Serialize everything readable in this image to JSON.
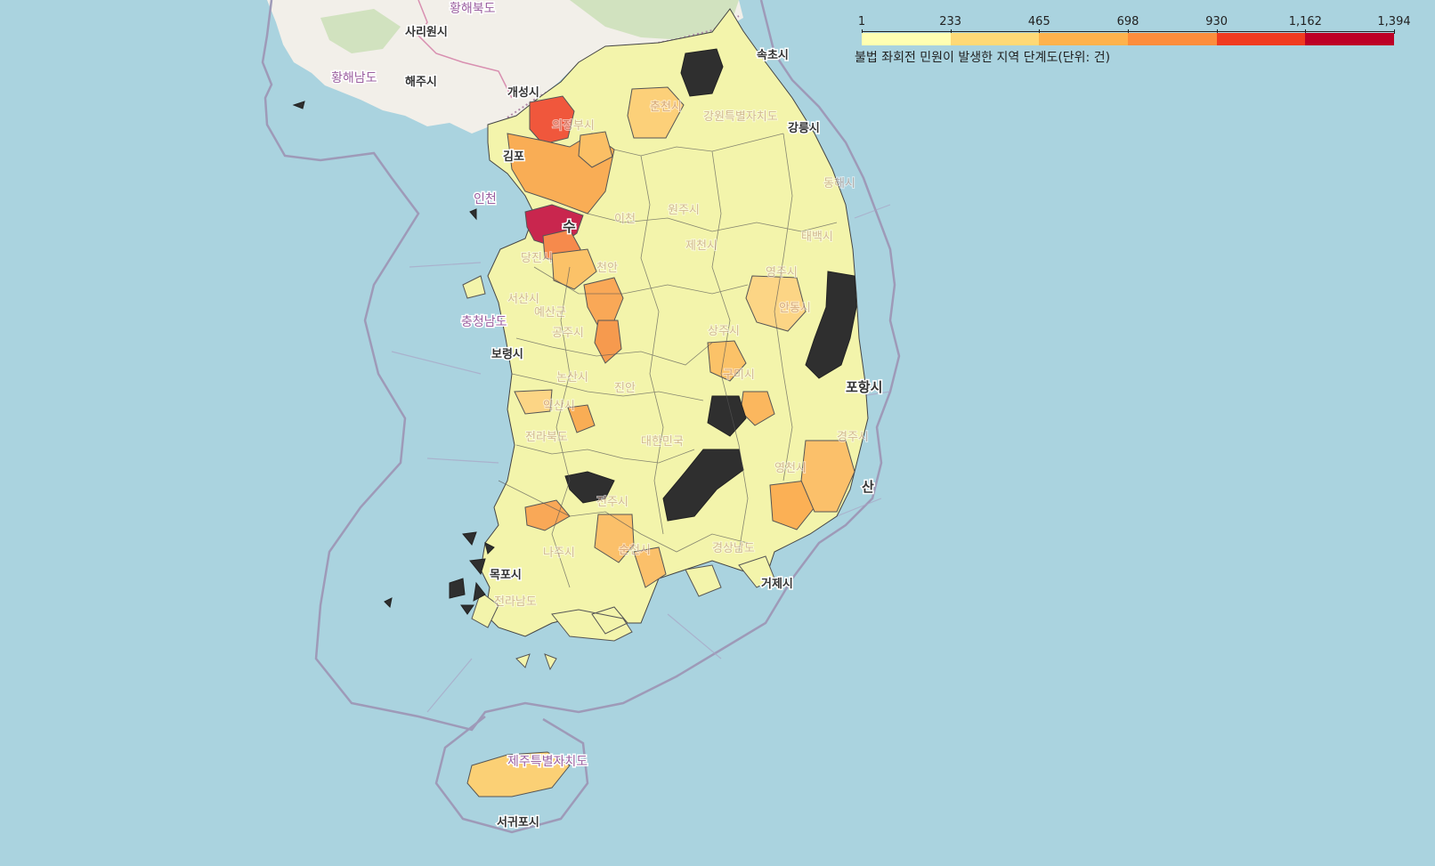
{
  "map": {
    "legend": {
      "caption": "불법 좌회전 민원이 발생한 지역 단계도(단위: 건)",
      "ticks": [
        "1",
        "233",
        "465",
        "698",
        "930",
        "1,162",
        "1,394"
      ],
      "colors": [
        "#ffffb2",
        "#fed976",
        "#feb24c",
        "#fd8d3c",
        "#f03b20",
        "#bd0026"
      ],
      "no_data_color": "#2f2f2f"
    },
    "labels": {
      "hwanghae_north": "황해북도",
      "sariwon": "사리원시",
      "hwanghae_south": "황해남도",
      "haeju": "해주시",
      "kaesong": "개성시",
      "incheon": "인천",
      "chungnam": "충청남도",
      "boryeong": "보령시",
      "sokcho": "속초시",
      "gangneung": "강릉시",
      "pohang": "포항시",
      "busan": "산",
      "mokpo": "목포시",
      "geoje": "거제시",
      "jeju": "제주특별자치도",
      "seogwipo": "서귀포시",
      "gimpo": "김포",
      "suwon": "수",
      "gyeongju": "경주시",
      "andong": "안동시",
      "chuncheon": "춘천시",
      "gumi": "구미시",
      "suncheon": "순천시",
      "gangwon": "강원특별자치도",
      "wonju": "원주시",
      "jecheon": "제천시",
      "sangju": "상주시",
      "yeongju": "영주시",
      "dangjin": "당진시",
      "seosan": "서산시",
      "gongju": "공주시",
      "nonsan": "논산시",
      "iksan": "익산시",
      "jeonbuk": "전라북도",
      "daehanminguk": "대한민국",
      "jeonju": "전주시",
      "naju": "나주시",
      "gyeongnam": "경상남도",
      "donghae": "동해시",
      "taebaek": "태백시",
      "yeongcheon": "영천시",
      "cheonan": "천안",
      "icheon": "이천",
      "uijeongbu": "의정부시",
      "yesan": "예산군",
      "jinan": "진안",
      "jeonnam": "전라남도"
    }
  }
}
